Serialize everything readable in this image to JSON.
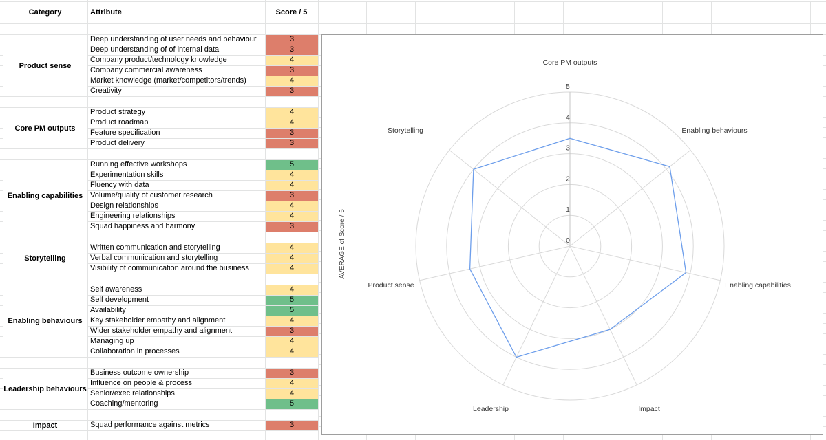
{
  "table": {
    "headers": {
      "category": "Category",
      "attribute": "Attribute",
      "score": "Score / 5"
    },
    "groups": [
      {
        "category": "Product sense",
        "rows": [
          {
            "attribute": "Deep understanding of user needs and behaviour",
            "score": 3
          },
          {
            "attribute": "Deep understanding of of internal data",
            "score": 3
          },
          {
            "attribute": "Company product/technology knowledge",
            "score": 4
          },
          {
            "attribute": "Company commercial awareness",
            "score": 3
          },
          {
            "attribute": "Market knowledge (market/competitors/trends)",
            "score": 4
          },
          {
            "attribute": "Creativity",
            "score": 3
          }
        ]
      },
      {
        "category": "Core PM outputs",
        "rows": [
          {
            "attribute": "Product strategy",
            "score": 4
          },
          {
            "attribute": "Product roadmap",
            "score": 4
          },
          {
            "attribute": "Feature specification",
            "score": 3
          },
          {
            "attribute": "Product delivery",
            "score": 3
          }
        ]
      },
      {
        "category": "Enabling capabilities",
        "rows": [
          {
            "attribute": "Running effective workshops",
            "score": 5
          },
          {
            "attribute": "Experimentation skills",
            "score": 4
          },
          {
            "attribute": "Fluency with data",
            "score": 4
          },
          {
            "attribute": "Volume/quality of customer research",
            "score": 3
          },
          {
            "attribute": "Design relationships",
            "score": 4
          },
          {
            "attribute": "Engineering relationships",
            "score": 4
          },
          {
            "attribute": "Squad happiness and harmony",
            "score": 3
          }
        ]
      },
      {
        "category": "Storytelling",
        "rows": [
          {
            "attribute": "Written communication and storytelling",
            "score": 4
          },
          {
            "attribute": "Verbal communication and storytelling",
            "score": 4
          },
          {
            "attribute": "Visibility of communication around the business",
            "score": 4
          }
        ]
      },
      {
        "category": "Enabling behaviours",
        "rows": [
          {
            "attribute": "Self awareness",
            "score": 4
          },
          {
            "attribute": "Self development",
            "score": 5
          },
          {
            "attribute": "Availability",
            "score": 5
          },
          {
            "attribute": "Key stakeholder empathy and alignment",
            "score": 4
          },
          {
            "attribute": "Wider stakeholder empathy and alignment",
            "score": 3
          },
          {
            "attribute": "Managing up",
            "score": 4
          },
          {
            "attribute": "Collaboration in processes",
            "score": 4
          }
        ]
      },
      {
        "category": "Leadership behaviours",
        "rows": [
          {
            "attribute": "Business outcome ownership",
            "score": 3
          },
          {
            "attribute": "Influence on people & process",
            "score": 4
          },
          {
            "attribute": "Senior/exec relationships",
            "score": 4
          },
          {
            "attribute": "Coaching/mentoring",
            "score": 5
          }
        ]
      },
      {
        "category": "Impact",
        "rows": [
          {
            "attribute": "Squad performance against metrics",
            "score": 3
          }
        ]
      }
    ]
  },
  "score_colors": {
    "3": "#dd7e6b",
    "4": "#ffe49c",
    "5": "#6fbf8a"
  },
  "chart_data": {
    "type": "radar",
    "axis_title": "AVERAGE of Score / 5",
    "categories": [
      "Core PM outputs",
      "Enabling behaviours",
      "Enabling capabilities",
      "Impact",
      "Leadership",
      "Product sense",
      "Storytelling"
    ],
    "series": [
      {
        "name": "AVERAGE of Score / 5",
        "values": [
          3.5,
          4.14,
          3.86,
          3,
          4,
          3.33,
          4
        ]
      }
    ],
    "rlim": [
      0,
      5
    ],
    "tick_labels": [
      "0",
      "1",
      "2",
      "3",
      "4",
      "5"
    ],
    "grid": "circular-rings-and-spokes",
    "legend": "none",
    "line_color": "#6d9eeb",
    "grid_color": "#d9d9d9",
    "label_color": "#333333"
  }
}
